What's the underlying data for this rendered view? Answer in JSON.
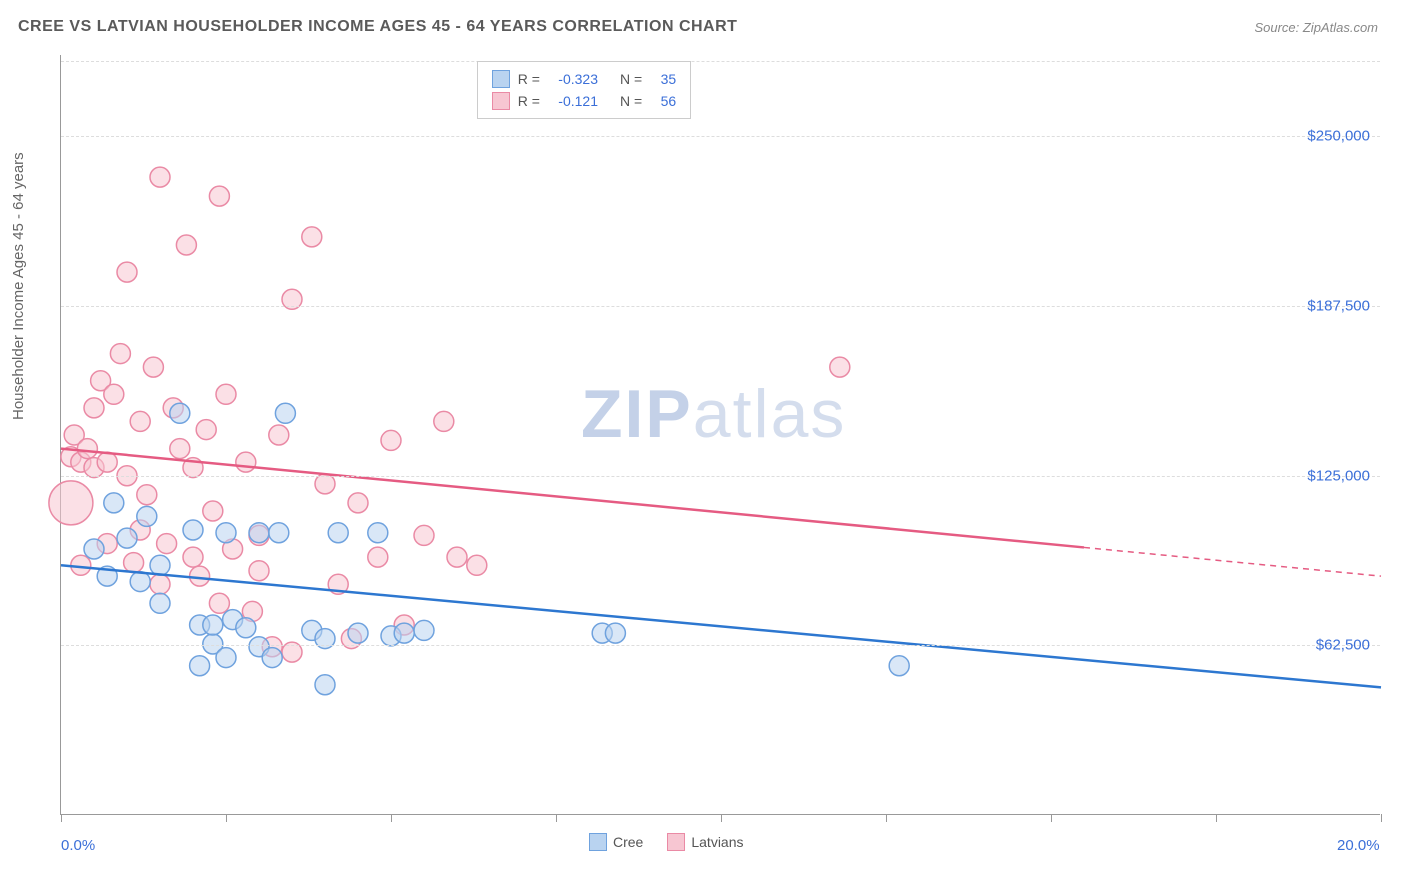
{
  "title": "CREE VS LATVIAN HOUSEHOLDER INCOME AGES 45 - 64 YEARS CORRELATION CHART",
  "source": "Source: ZipAtlas.com",
  "y_axis_label": "Householder Income Ages 45 - 64 years",
  "watermark_zip": "ZIP",
  "watermark_atlas": "atlas",
  "chart": {
    "type": "scatter-with-regression",
    "xlim": [
      0,
      20
    ],
    "ylim": [
      0,
      280000
    ],
    "x_tick_positions": [
      0,
      2.5,
      5,
      7.5,
      10,
      12.5,
      15,
      17.5,
      20
    ],
    "x_tick_labels_shown": {
      "0": "0.0%",
      "20": "20.0%"
    },
    "y_gridlines": [
      62500,
      125000,
      187500,
      250000
    ],
    "y_tick_labels": {
      "62500": "$62,500",
      "125000": "$125,000",
      "187500": "$187,500",
      "250000": "$250,000"
    },
    "background_color": "#ffffff",
    "grid_color": "#dddddd",
    "axis_color": "#999999",
    "tick_label_color": "#3b6fd8",
    "series": [
      {
        "name": "Cree",
        "color_fill": "#b9d3f0",
        "color_stroke": "#6fa2de",
        "marker_radius": 10,
        "fill_opacity": 0.55,
        "regression": {
          "R": "-0.323",
          "N": "35",
          "line_color": "#2d77d0",
          "line_width": 2.5,
          "x0": 0,
          "y0": 92000,
          "x1": 20,
          "y1": 47000,
          "solid_extent_x": 20
        },
        "points": [
          {
            "x": 0.5,
            "y": 98000
          },
          {
            "x": 0.7,
            "y": 88000
          },
          {
            "x": 0.8,
            "y": 115000
          },
          {
            "x": 1.0,
            "y": 102000
          },
          {
            "x": 1.2,
            "y": 86000
          },
          {
            "x": 1.3,
            "y": 110000
          },
          {
            "x": 1.5,
            "y": 92000
          },
          {
            "x": 1.5,
            "y": 78000
          },
          {
            "x": 1.8,
            "y": 148000
          },
          {
            "x": 2.0,
            "y": 105000
          },
          {
            "x": 2.1,
            "y": 55000
          },
          {
            "x": 2.1,
            "y": 70000
          },
          {
            "x": 2.3,
            "y": 63000
          },
          {
            "x": 2.5,
            "y": 58000
          },
          {
            "x": 2.5,
            "y": 104000
          },
          {
            "x": 2.6,
            "y": 72000
          },
          {
            "x": 2.8,
            "y": 69000
          },
          {
            "x": 3.0,
            "y": 104000
          },
          {
            "x": 3.0,
            "y": 62000
          },
          {
            "x": 3.2,
            "y": 58000
          },
          {
            "x": 3.3,
            "y": 104000
          },
          {
            "x": 3.4,
            "y": 148000
          },
          {
            "x": 3.8,
            "y": 68000
          },
          {
            "x": 4.0,
            "y": 48000
          },
          {
            "x": 4.0,
            "y": 65000
          },
          {
            "x": 4.2,
            "y": 104000
          },
          {
            "x": 4.5,
            "y": 67000
          },
          {
            "x": 4.8,
            "y": 104000
          },
          {
            "x": 5.0,
            "y": 66000
          },
          {
            "x": 5.2,
            "y": 67000
          },
          {
            "x": 5.5,
            "y": 68000
          },
          {
            "x": 8.2,
            "y": 67000
          },
          {
            "x": 8.4,
            "y": 67000
          },
          {
            "x": 12.7,
            "y": 55000
          },
          {
            "x": 2.3,
            "y": 70000
          }
        ]
      },
      {
        "name": "Latvians",
        "color_fill": "#f7c6d2",
        "color_stroke": "#ea8aa5",
        "marker_radius": 10,
        "fill_opacity": 0.55,
        "regression": {
          "R": "-0.121",
          "N": "56",
          "line_color": "#e55b82",
          "line_width": 2.5,
          "x0": 0,
          "y0": 135000,
          "x1": 20,
          "y1": 88000,
          "solid_extent_x": 15.5
        },
        "points": [
          {
            "x": 0.15,
            "y": 132000
          },
          {
            "x": 0.15,
            "y": 115000,
            "r": 22
          },
          {
            "x": 0.2,
            "y": 140000
          },
          {
            "x": 0.3,
            "y": 130000
          },
          {
            "x": 0.3,
            "y": 92000
          },
          {
            "x": 0.4,
            "y": 135000
          },
          {
            "x": 0.5,
            "y": 128000
          },
          {
            "x": 0.5,
            "y": 150000
          },
          {
            "x": 0.6,
            "y": 160000
          },
          {
            "x": 0.7,
            "y": 130000
          },
          {
            "x": 0.7,
            "y": 100000
          },
          {
            "x": 0.8,
            "y": 155000
          },
          {
            "x": 0.9,
            "y": 170000
          },
          {
            "x": 1.0,
            "y": 125000
          },
          {
            "x": 1.0,
            "y": 200000
          },
          {
            "x": 1.1,
            "y": 93000
          },
          {
            "x": 1.2,
            "y": 145000
          },
          {
            "x": 1.2,
            "y": 105000
          },
          {
            "x": 1.3,
            "y": 118000
          },
          {
            "x": 1.4,
            "y": 165000
          },
          {
            "x": 1.5,
            "y": 235000
          },
          {
            "x": 1.5,
            "y": 85000
          },
          {
            "x": 1.6,
            "y": 100000
          },
          {
            "x": 1.7,
            "y": 150000
          },
          {
            "x": 1.8,
            "y": 135000
          },
          {
            "x": 1.9,
            "y": 210000
          },
          {
            "x": 2.0,
            "y": 128000
          },
          {
            "x": 2.0,
            "y": 95000
          },
          {
            "x": 2.1,
            "y": 88000
          },
          {
            "x": 2.2,
            "y": 142000
          },
          {
            "x": 2.3,
            "y": 112000
          },
          {
            "x": 2.4,
            "y": 228000
          },
          {
            "x": 2.4,
            "y": 78000
          },
          {
            "x": 2.5,
            "y": 155000
          },
          {
            "x": 2.6,
            "y": 98000
          },
          {
            "x": 2.8,
            "y": 130000
          },
          {
            "x": 2.9,
            "y": 75000
          },
          {
            "x": 3.0,
            "y": 103000
          },
          {
            "x": 3.2,
            "y": 62000
          },
          {
            "x": 3.3,
            "y": 140000
          },
          {
            "x": 3.5,
            "y": 190000
          },
          {
            "x": 3.5,
            "y": 60000
          },
          {
            "x": 3.8,
            "y": 213000
          },
          {
            "x": 4.0,
            "y": 122000
          },
          {
            "x": 4.2,
            "y": 85000
          },
          {
            "x": 4.4,
            "y": 65000
          },
          {
            "x": 4.5,
            "y": 115000
          },
          {
            "x": 5.0,
            "y": 138000
          },
          {
            "x": 5.2,
            "y": 70000
          },
          {
            "x": 5.8,
            "y": 145000
          },
          {
            "x": 6.0,
            "y": 95000
          },
          {
            "x": 6.3,
            "y": 92000
          },
          {
            "x": 5.5,
            "y": 103000
          },
          {
            "x": 4.8,
            "y": 95000
          },
          {
            "x": 11.8,
            "y": 165000
          },
          {
            "x": 3.0,
            "y": 90000
          }
        ]
      }
    ],
    "legend_top": {
      "rows": [
        {
          "swatch_fill": "#b9d3f0",
          "swatch_stroke": "#6fa2de",
          "r_label": "R =",
          "r_val": "-0.323",
          "n_label": "N =",
          "n_val": "35"
        },
        {
          "swatch_fill": "#f7c6d2",
          "swatch_stroke": "#ea8aa5",
          "r_label": "R =",
          "r_val": "-0.121",
          "n_label": "N =",
          "n_val": "56"
        }
      ]
    },
    "legend_bottom": {
      "items": [
        {
          "swatch_fill": "#b9d3f0",
          "swatch_stroke": "#6fa2de",
          "label": "Cree"
        },
        {
          "swatch_fill": "#f7c6d2",
          "swatch_stroke": "#ea8aa5",
          "label": "Latvians"
        }
      ]
    }
  }
}
